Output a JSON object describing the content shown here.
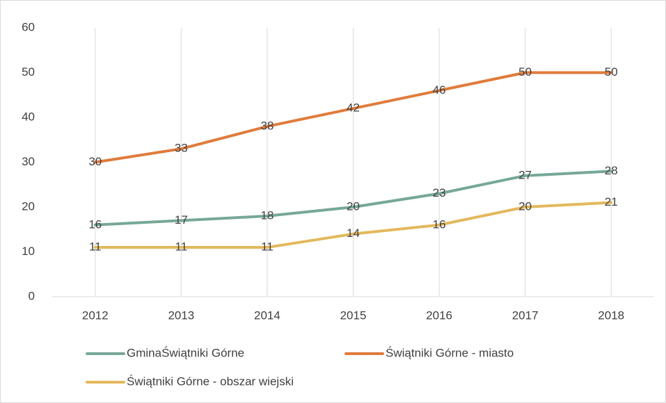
{
  "chart_data": {
    "type": "line",
    "categories": [
      "2012",
      "2013",
      "2014",
      "2015",
      "2016",
      "2017",
      "2018"
    ],
    "series": [
      {
        "name": "GminaŚwiątniki Górne",
        "color": "#76a897",
        "values": [
          16,
          17,
          18,
          20,
          23,
          27,
          28
        ]
      },
      {
        "name": "Świątniki Górne - miasto",
        "color": "#e07b3c",
        "values": [
          30,
          33,
          38,
          42,
          46,
          50,
          50
        ]
      },
      {
        "name": "Świątniki Górne - obszar wiejski",
        "color": "#e3b85c",
        "values": [
          11,
          11,
          11,
          14,
          16,
          20,
          21
        ]
      }
    ],
    "ylim": [
      0,
      60
    ],
    "yticks": [
      0,
      10,
      20,
      30,
      40,
      50,
      60
    ],
    "grid": true,
    "data_labels": true,
    "legend": "bottom"
  }
}
